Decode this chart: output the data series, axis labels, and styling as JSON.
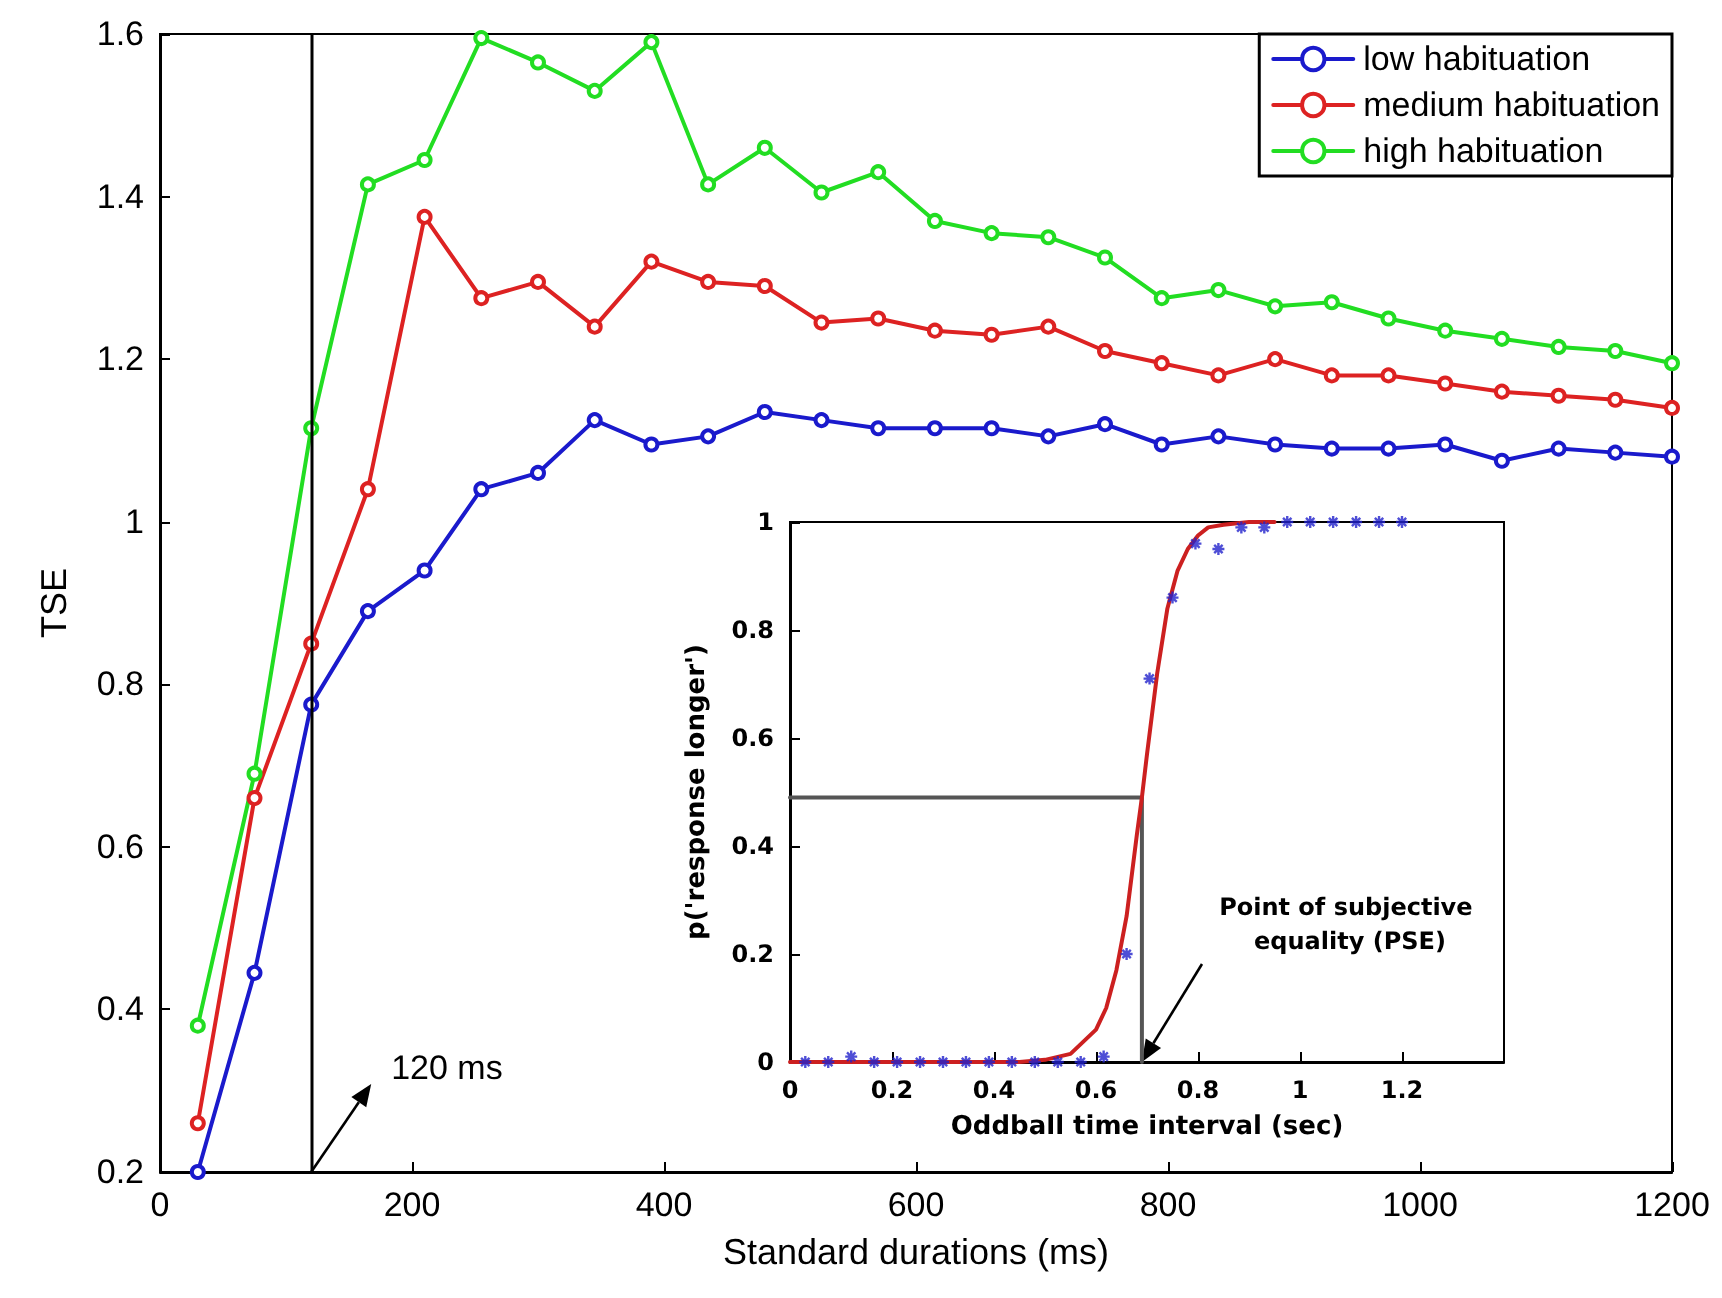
{
  "chart_data": [
    {
      "type": "line",
      "xlabel": "Standard durations (ms)",
      "ylabel": "TSE",
      "x": [
        30,
        75,
        120,
        165,
        210,
        255,
        300,
        345,
        390,
        435,
        480,
        525,
        570,
        615,
        660,
        705,
        750,
        795,
        840,
        885,
        930,
        975,
        1020,
        1065,
        1110,
        1155,
        1200
      ],
      "series": [
        {
          "name": "low habituation",
          "color": "#1a1acc",
          "values": [
            0.2,
            0.445,
            0.775,
            0.89,
            0.94,
            1.04,
            1.06,
            1.125,
            1.095,
            1.105,
            1.135,
            1.125,
            1.115,
            1.115,
            1.115,
            1.105,
            1.12,
            1.095,
            1.105,
            1.095,
            1.09,
            1.09,
            1.095,
            1.075,
            1.09,
            1.085,
            1.08
          ]
        },
        {
          "name": "medium habituation",
          "color": "#dd2222",
          "values": [
            0.26,
            0.66,
            0.85,
            1.04,
            1.375,
            1.275,
            1.295,
            1.24,
            1.32,
            1.295,
            1.29,
            1.245,
            1.25,
            1.235,
            1.23,
            1.24,
            1.21,
            1.195,
            1.18,
            1.2,
            1.18,
            1.18,
            1.17,
            1.16,
            1.155,
            1.15,
            1.14
          ]
        },
        {
          "name": "high habituation",
          "color": "#22dd22",
          "values": [
            0.38,
            0.69,
            1.115,
            1.415,
            1.445,
            1.595,
            1.565,
            1.53,
            1.59,
            1.415,
            1.46,
            1.405,
            1.43,
            1.37,
            1.355,
            1.35,
            1.325,
            1.275,
            1.285,
            1.265,
            1.27,
            1.25,
            1.235,
            1.225,
            1.215,
            1.21,
            1.195
          ]
        }
      ],
      "xlim": [
        0,
        1200
      ],
      "xticks": [
        0,
        200,
        400,
        600,
        800,
        1000,
        1200
      ],
      "ylim": [
        0.2,
        1.6
      ],
      "yticks": [
        0.2,
        0.4,
        0.6,
        0.8,
        1,
        1.2,
        1.4,
        1.6
      ],
      "ref_lines": [
        {
          "axis": "x",
          "value": 120,
          "label": "120 ms",
          "color": "#000000"
        }
      ],
      "legend": "top right",
      "grid": false,
      "marker": "circle",
      "line_style": "solid"
    },
    {
      "type": "scatter",
      "xlabel": "Oddball time interval (sec)",
      "ylabel": "p('response longer')",
      "x": [
        0.03,
        0.075,
        0.12,
        0.165,
        0.21,
        0.255,
        0.3,
        0.345,
        0.39,
        0.435,
        0.48,
        0.525,
        0.57,
        0.615,
        0.66,
        0.705,
        0.75,
        0.795,
        0.84,
        0.885,
        0.93,
        0.975,
        1.02,
        1.065,
        1.11,
        1.155,
        1.2
      ],
      "series": [
        {
          "type": "line",
          "color": "#555555",
          "marker": "none",
          "x": [
            0,
            0.69,
            0.69
          ],
          "values": [
            0.49,
            0.49,
            0
          ]
        },
        {
          "type": "line",
          "color": "#cc2020",
          "marker": "none",
          "x": [
            0,
            0.45,
            0.5,
            0.55,
            0.6,
            0.62,
            0.64,
            0.66,
            0.68,
            0.69,
            0.7,
            0.72,
            0.74,
            0.76,
            0.78,
            0.8,
            0.82,
            0.85,
            0.9,
            0.95
          ],
          "values": [
            0,
            0,
            0.004,
            0.015,
            0.06,
            0.1,
            0.17,
            0.27,
            0.42,
            0.49,
            0.57,
            0.72,
            0.84,
            0.91,
            0.95,
            0.975,
            0.99,
            0.995,
            1,
            1
          ]
        },
        {
          "color": "#2222cc",
          "marker": "cross",
          "values": [
            0,
            0,
            0.01,
            0,
            0,
            0,
            0,
            0,
            0,
            0,
            0,
            0,
            0,
            0.01,
            0.2,
            0.71,
            0.86,
            0.96,
            0.95,
            0.99,
            0.99,
            1,
            1,
            1,
            1,
            1,
            1
          ]
        }
      ],
      "xlim": [
        0,
        1.4
      ],
      "xticks": [
        0,
        0.2,
        0.4,
        0.6,
        0.8,
        1,
        1.2
      ],
      "ylim": [
        0,
        1
      ],
      "yticks": [
        0,
        0.2,
        0.4,
        0.6,
        0.8,
        1
      ],
      "annotations": [
        "Point of subjective equality (PSE)"
      ],
      "legend": false,
      "grid": false
    }
  ]
}
